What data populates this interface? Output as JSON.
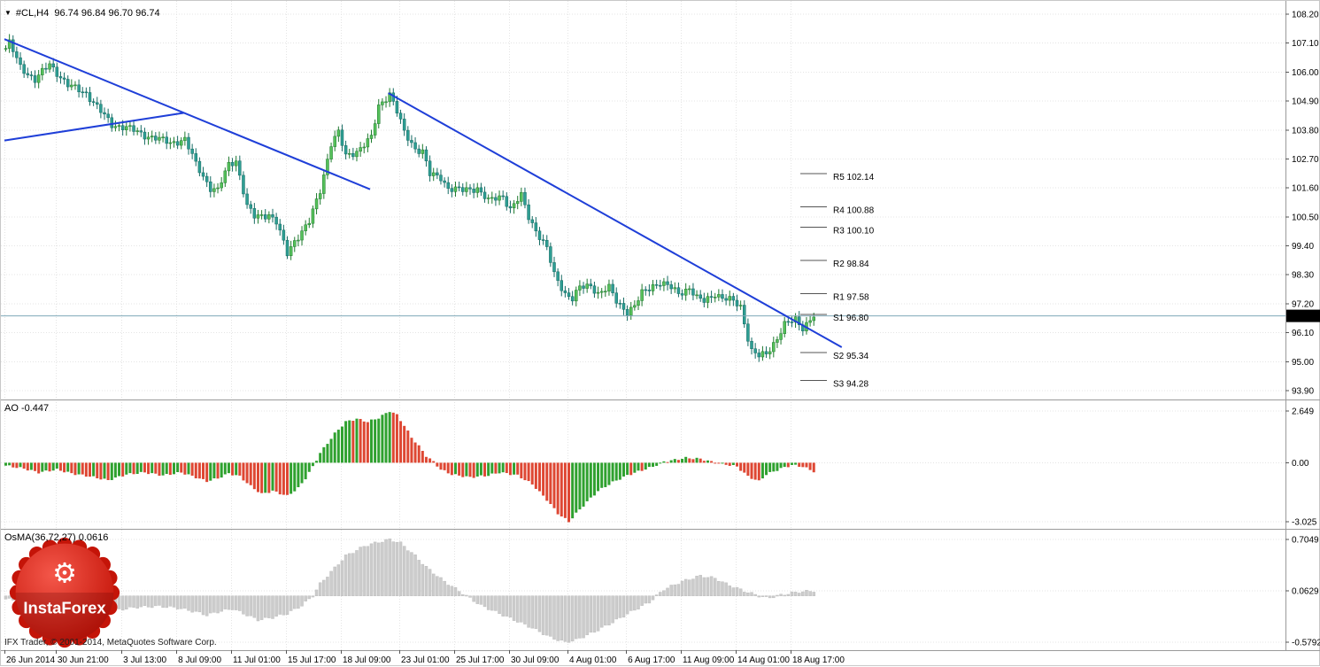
{
  "header": {
    "dropdown_icon": "▼",
    "symbol_ohlc": "#CL,H4  96.74 96.84 96.70 96.74"
  },
  "watermark": {
    "brand": "InstaForex",
    "gear_icon": "⚙"
  },
  "footer": {
    "copyright": "IFX Trader, © 2001-2014, MetaQuotes Software Corp."
  },
  "colors": {
    "candle_up": "#55c05a",
    "candle_up_border": "#1e7a2e",
    "candle_down": "#2e9e93",
    "candle_down_border": "#156b63",
    "ao_up": "#2fa12f",
    "ao_down": "#de4733",
    "osma": "#cccccc",
    "osma_border": "#bdbdbd",
    "trendline": "#1f3fd8",
    "grid": "#e4e4e4",
    "separator": "#9a9a9a",
    "pivot_dash": "#555555",
    "pivot_label": "#9a9a9a",
    "price_line": "#7fa8b8",
    "badge_bg": "#000000",
    "badge_text": "#ffffff",
    "axis_text": "#000000",
    "logo_red": "#e02a1d",
    "logo_red_dark": "#a80f08"
  },
  "chart_data": {
    "type": "candlestick",
    "title": "#CL,H4",
    "symbol": "#CL",
    "timeframe": "H4",
    "ohlc_current": {
      "open": "96.74",
      "high": "96.84",
      "low": "96.70",
      "close": "96.74"
    },
    "main_pane": {
      "current_price": 96.74,
      "current_price_label": "96.74",
      "bar_count": 222,
      "ticks": [
        {
          "label": "108.20",
          "value": 108.2
        },
        {
          "label": "107.10",
          "value": 107.1
        },
        {
          "label": "106.00",
          "value": 106.0
        },
        {
          "label": "104.90",
          "value": 104.9
        },
        {
          "label": "103.80",
          "value": 103.8
        },
        {
          "label": "102.70",
          "value": 102.7
        },
        {
          "label": "101.60",
          "value": 101.6
        },
        {
          "label": "100.50",
          "value": 100.5
        },
        {
          "label": "99.40",
          "value": 99.4
        },
        {
          "label": "98.30",
          "value": 98.3
        },
        {
          "label": "97.20",
          "value": 97.2
        },
        {
          "label": "96.10",
          "value": 96.1
        },
        {
          "label": "95.00",
          "value": 95.0
        },
        {
          "label": "93.90",
          "value": 93.9
        }
      ],
      "pivot_levels": [
        {
          "label": "R5 102.14",
          "value": 102.14
        },
        {
          "label": "R4 100.88",
          "value": 100.88
        },
        {
          "label": "R3 100.10",
          "value": 100.1
        },
        {
          "label": "R2 98.84",
          "value": 98.84
        },
        {
          "label": "R1 97.58",
          "value": 97.58
        },
        {
          "label": "S1 96.80",
          "value": 96.8
        },
        {
          "label": "S2 95.34",
          "value": 95.34
        },
        {
          "label": "S3 94.28",
          "value": 94.28
        }
      ],
      "trendlines": [
        {
          "from": [
            0,
            107.25
          ],
          "to": [
            100,
            101.55
          ]
        },
        {
          "from": [
            0,
            103.4
          ],
          "to": [
            49,
            104.45
          ]
        },
        {
          "from": [
            105,
            105.2
          ],
          "to": [
            229,
            95.55
          ]
        }
      ],
      "close_path": [
        [
          0,
          106.9
        ],
        [
          1,
          107.1
        ],
        [
          4,
          106.2
        ],
        [
          8,
          105.7
        ],
        [
          12,
          106.3
        ],
        [
          17,
          105.5
        ],
        [
          22,
          105.2
        ],
        [
          26,
          104.5
        ],
        [
          29,
          104.0
        ],
        [
          33,
          103.9
        ],
        [
          38,
          103.6
        ],
        [
          41,
          103.5
        ],
        [
          45,
          103.3
        ],
        [
          49,
          103.45
        ],
        [
          52,
          102.5
        ],
        [
          56,
          101.6
        ],
        [
          58,
          101.5
        ],
        [
          61,
          102.5
        ],
        [
          63,
          102.65
        ],
        [
          66,
          100.9
        ],
        [
          68,
          100.5
        ],
        [
          72,
          100.6
        ],
        [
          74,
          100.3
        ],
        [
          77,
          99.1
        ],
        [
          79,
          99.6
        ],
        [
          83,
          100.3
        ],
        [
          86,
          101.5
        ],
        [
          89,
          103.3
        ],
        [
          91,
          103.7
        ],
        [
          93,
          102.8
        ],
        [
          96,
          103.0
        ],
        [
          100,
          103.5
        ],
        [
          102,
          104.7
        ],
        [
          105,
          105.2
        ],
        [
          107,
          104.5
        ],
        [
          109,
          103.7
        ],
        [
          112,
          103.1
        ],
        [
          114,
          103.0
        ],
        [
          116,
          102.1
        ],
        [
          119,
          102.0
        ],
        [
          121,
          101.6
        ],
        [
          125,
          101.5
        ],
        [
          129,
          101.6
        ],
        [
          132,
          101.1
        ],
        [
          136,
          101.3
        ],
        [
          138,
          100.8
        ],
        [
          141,
          101.3
        ],
        [
          143,
          100.5
        ],
        [
          145,
          100.0
        ],
        [
          148,
          99.3
        ],
        [
          150,
          98.3
        ],
        [
          153,
          97.6
        ],
        [
          155,
          97.4
        ],
        [
          157,
          97.8
        ],
        [
          160,
          97.9
        ],
        [
          162,
          97.6
        ],
        [
          165,
          97.8
        ],
        [
          167,
          97.3
        ],
        [
          170,
          96.9
        ],
        [
          172,
          97.1
        ],
        [
          174,
          97.6
        ],
        [
          177,
          97.9
        ],
        [
          179,
          98.0
        ],
        [
          182,
          97.8
        ],
        [
          184,
          97.6
        ],
        [
          187,
          97.8
        ],
        [
          189,
          97.4
        ],
        [
          191,
          97.3
        ],
        [
          194,
          97.6
        ],
        [
          196,
          97.4
        ],
        [
          199,
          97.3
        ],
        [
          201,
          97.1
        ],
        [
          203,
          95.9
        ],
        [
          204,
          95.4
        ],
        [
          206,
          95.2
        ],
        [
          208,
          95.3
        ],
        [
          211,
          95.9
        ],
        [
          213,
          96.4
        ],
        [
          216,
          96.6
        ],
        [
          218,
          96.3
        ],
        [
          221,
          96.74
        ]
      ]
    },
    "ao_pane": {
      "label": "AO -0.447",
      "value": -0.447,
      "ticks": [
        {
          "label": "2.649",
          "value": 2.649
        },
        {
          "label": "0.00",
          "value": 0
        },
        {
          "label": "-3.025",
          "value": -3.025
        }
      ],
      "path": [
        [
          0,
          -0.15
        ],
        [
          5,
          -0.3
        ],
        [
          9,
          -0.5
        ],
        [
          14,
          -0.35
        ],
        [
          18,
          -0.55
        ],
        [
          23,
          -0.7
        ],
        [
          28,
          -0.9
        ],
        [
          33,
          -0.6
        ],
        [
          38,
          -0.5
        ],
        [
          43,
          -0.65
        ],
        [
          48,
          -0.5
        ],
        [
          52,
          -0.75
        ],
        [
          55,
          -0.95
        ],
        [
          58,
          -0.8
        ],
        [
          61,
          -0.55
        ],
        [
          64,
          -0.7
        ],
        [
          67,
          -1.2
        ],
        [
          70,
          -1.6
        ],
        [
          73,
          -1.45
        ],
        [
          77,
          -1.7
        ],
        [
          80,
          -1.3
        ],
        [
          82,
          -0.8
        ],
        [
          84,
          -0.2
        ],
        [
          86,
          0.5
        ],
        [
          88,
          1.0
        ],
        [
          90,
          1.5
        ],
        [
          93,
          2.1
        ],
        [
          96,
          2.25
        ],
        [
          99,
          2.1
        ],
        [
          102,
          2.3
        ],
        [
          105,
          2.649
        ],
        [
          107,
          2.45
        ],
        [
          109,
          1.9
        ],
        [
          111,
          1.3
        ],
        [
          113,
          0.85
        ],
        [
          115,
          0.35
        ],
        [
          117,
          0.05
        ],
        [
          119,
          -0.35
        ],
        [
          122,
          -0.6
        ],
        [
          127,
          -0.75
        ],
        [
          132,
          -0.65
        ],
        [
          135,
          -0.5
        ],
        [
          137,
          -0.55
        ],
        [
          140,
          -0.65
        ],
        [
          144,
          -1.1
        ],
        [
          146,
          -1.5
        ],
        [
          148,
          -1.9
        ],
        [
          151,
          -2.6
        ],
        [
          154,
          -3.025
        ],
        [
          156,
          -2.6
        ],
        [
          159,
          -2.0
        ],
        [
          162,
          -1.45
        ],
        [
          166,
          -1.0
        ],
        [
          170,
          -0.65
        ],
        [
          173,
          -0.45
        ],
        [
          177,
          -0.2
        ],
        [
          180,
          0.05
        ],
        [
          183,
          0.15
        ],
        [
          186,
          0.25
        ],
        [
          190,
          0.2
        ],
        [
          193,
          0.05
        ],
        [
          196,
          -0.05
        ],
        [
          200,
          -0.2
        ],
        [
          203,
          -0.7
        ],
        [
          206,
          -0.95
        ],
        [
          208,
          -0.6
        ],
        [
          212,
          -0.3
        ],
        [
          215,
          -0.12
        ],
        [
          218,
          -0.2
        ],
        [
          221,
          -0.447
        ]
      ]
    },
    "osma_pane": {
      "label": "OsMA(36,72,27) 0.0616",
      "value": 0.0616,
      "ticks": [
        {
          "label": "0.7049",
          "value": 0.7049
        },
        {
          "label": "0.0629",
          "value": 0.0629
        },
        {
          "label": "-0.5792",
          "value": -0.5792
        }
      ],
      "path": [
        [
          0,
          -0.04
        ],
        [
          6,
          -0.07
        ],
        [
          12,
          -0.05
        ],
        [
          18,
          -0.09
        ],
        [
          24,
          -0.12
        ],
        [
          30,
          -0.18
        ],
        [
          36,
          -0.14
        ],
        [
          42,
          -0.13
        ],
        [
          47,
          -0.15
        ],
        [
          52,
          -0.2
        ],
        [
          55,
          -0.24
        ],
        [
          58,
          -0.2
        ],
        [
          62,
          -0.16
        ],
        [
          66,
          -0.24
        ],
        [
          69,
          -0.3
        ],
        [
          73,
          -0.27
        ],
        [
          77,
          -0.22
        ],
        [
          81,
          -0.12
        ],
        [
          84,
          0.0
        ],
        [
          86,
          0.15
        ],
        [
          88,
          0.25
        ],
        [
          90,
          0.35
        ],
        [
          93,
          0.5
        ],
        [
          96,
          0.57
        ],
        [
          98,
          0.62
        ],
        [
          101,
          0.66
        ],
        [
          105,
          0.7049
        ],
        [
          108,
          0.66
        ],
        [
          110,
          0.58
        ],
        [
          112,
          0.5
        ],
        [
          115,
          0.36
        ],
        [
          118,
          0.25
        ],
        [
          120,
          0.18
        ],
        [
          123,
          0.09
        ],
        [
          126,
          0.0
        ],
        [
          130,
          -0.12
        ],
        [
          135,
          -0.22
        ],
        [
          139,
          -0.3
        ],
        [
          144,
          -0.4
        ],
        [
          149,
          -0.52
        ],
        [
          153,
          -0.58
        ],
        [
          156,
          -0.55
        ],
        [
          161,
          -0.45
        ],
        [
          166,
          -0.33
        ],
        [
          171,
          -0.2
        ],
        [
          176,
          -0.08
        ],
        [
          178,
          0.0
        ],
        [
          180,
          0.08
        ],
        [
          185,
          0.18
        ],
        [
          190,
          0.25
        ],
        [
          194,
          0.22
        ],
        [
          197,
          0.15
        ],
        [
          202,
          0.06
        ],
        [
          206,
          0.0
        ],
        [
          209,
          -0.02
        ],
        [
          213,
          0.02
        ],
        [
          217,
          0.05
        ],
        [
          221,
          0.0616
        ]
      ]
    },
    "x_labels": [
      {
        "text": "26 Jun 2014",
        "bar": 0
      },
      {
        "text": "30 Jun 21:00",
        "bar": 14
      },
      {
        "text": "3 Jul 13:00",
        "bar": 32
      },
      {
        "text": "8 Jul 09:00",
        "bar": 47
      },
      {
        "text": "11 Jul 01:00",
        "bar": 62
      },
      {
        "text": "15 Jul 17:00",
        "bar": 77
      },
      {
        "text": "18 Jul 09:00",
        "bar": 92
      },
      {
        "text": "23 Jul 01:00",
        "bar": 108
      },
      {
        "text": "25 Jul 17:00",
        "bar": 123
      },
      {
        "text": "30 Jul 09:00",
        "bar": 138
      },
      {
        "text": "4 Aug 01:00",
        "bar": 154
      },
      {
        "text": "6 Aug 17:00",
        "bar": 170
      },
      {
        "text": "11 Aug 09:00",
        "bar": 185
      },
      {
        "text": "14 Aug 01:00",
        "bar": 200
      },
      {
        "text": "18 Aug 17:00",
        "bar": 215
      }
    ]
  }
}
